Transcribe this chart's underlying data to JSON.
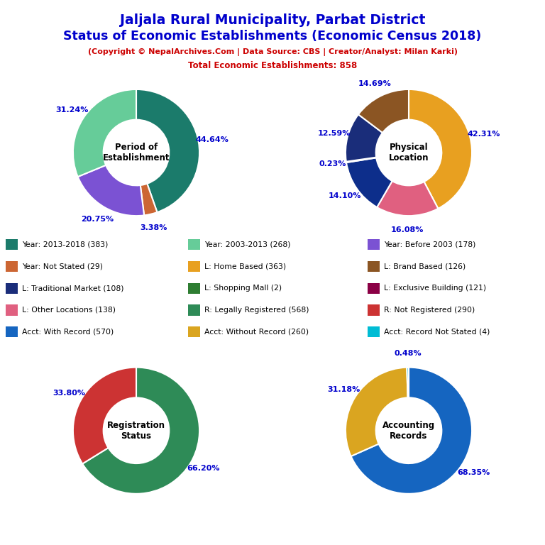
{
  "title_line1": "Jaljala Rural Municipality, Parbat District",
  "title_line2": "Status of Economic Establishments (Economic Census 2018)",
  "subtitle1": "(Copyright © NepalArchives.Com | Data Source: CBS | Creator/Analyst: Milan Karki)",
  "subtitle2": "Total Economic Establishments: 858",
  "title_color": "#0000CC",
  "subtitle_color": "#CC0000",
  "chart1_title": "Period of\nEstablishment",
  "chart1_values": [
    44.64,
    3.38,
    20.75,
    31.24
  ],
  "chart1_colors": [
    "#1B7B6B",
    "#CC6633",
    "#7B52D3",
    "#66CC99"
  ],
  "chart1_labels": [
    "44.64%",
    "3.38%",
    "20.75%",
    "31.24%"
  ],
  "chart1_startangle": 90,
  "chart2_title": "Physical\nLocation",
  "chart2_values": [
    42.31,
    16.08,
    14.1,
    0.23,
    12.59,
    14.69
  ],
  "chart2_colors": [
    "#E8A020",
    "#E06080",
    "#0D2E8B",
    "#00BCD4",
    "#1A2D7A",
    "#8B5523"
  ],
  "chart2_labels": [
    "42.31%",
    "16.08%",
    "14.10%",
    "0.23%",
    "12.59%",
    "14.69%"
  ],
  "chart2_startangle": 90,
  "chart3_title": "Registration\nStatus",
  "chart3_values": [
    66.2,
    33.8
  ],
  "chart3_colors": [
    "#2E8B57",
    "#CC3333"
  ],
  "chart3_labels": [
    "66.20%",
    "33.80%"
  ],
  "chart3_startangle": 90,
  "chart4_title": "Accounting\nRecords",
  "chart4_values": [
    68.35,
    31.18,
    0.48
  ],
  "chart4_colors": [
    "#1565C0",
    "#DAA520",
    "#00BCD4"
  ],
  "chart4_labels": [
    "68.35%",
    "31.18%",
    "0.48%"
  ],
  "chart4_startangle": 90,
  "legend_items_col1": [
    {
      "label": "Year: 2013-2018 (383)",
      "color": "#1B7B6B"
    },
    {
      "label": "Year: Not Stated (29)",
      "color": "#CC6633"
    },
    {
      "label": "L: Traditional Market (108)",
      "color": "#1A2D7A"
    },
    {
      "label": "L: Other Locations (138)",
      "color": "#E06080"
    },
    {
      "label": "Acct: With Record (570)",
      "color": "#1565C0"
    }
  ],
  "legend_items_col2": [
    {
      "label": "Year: 2003-2013 (268)",
      "color": "#66CC99"
    },
    {
      "label": "L: Home Based (363)",
      "color": "#E8A020"
    },
    {
      "label": "L: Shopping Mall (2)",
      "color": "#2E7D32"
    },
    {
      "label": "R: Legally Registered (568)",
      "color": "#2E8B57"
    },
    {
      "label": "Acct: Without Record (260)",
      "color": "#DAA520"
    }
  ],
  "legend_items_col3": [
    {
      "label": "Year: Before 2003 (178)",
      "color": "#7B52D3"
    },
    {
      "label": "L: Brand Based (126)",
      "color": "#8B5523"
    },
    {
      "label": "L: Exclusive Building (121)",
      "color": "#8B0045"
    },
    {
      "label": "R: Not Registered (290)",
      "color": "#CC3333"
    },
    {
      "label": "Acct: Record Not Stated (4)",
      "color": "#00BCD4"
    }
  ],
  "label_color": "#0000CC",
  "bg_color": "#FFFFFF"
}
